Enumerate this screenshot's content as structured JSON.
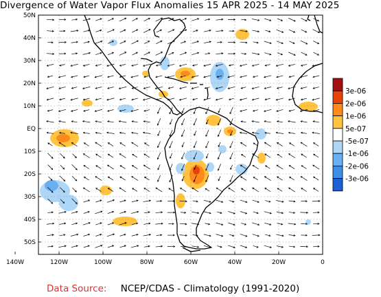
{
  "title": "Divergence of Water Vapor Flux Anomalies 15 APR 2025 - 14 MAY 2025",
  "footer": {
    "source_label": "Data Source:",
    "source_value": "NCEP/CDAS - Climatology (1991-2020)"
  },
  "map": {
    "lat_labels": [
      "50N",
      "40N",
      "30N",
      "20N",
      "10N",
      "EQ",
      "10S",
      "20S",
      "30S",
      "40S",
      "50S"
    ],
    "lon_labels": [
      "140W",
      "120W",
      "100W",
      "80W",
      "60W",
      "40W",
      "20W",
      "0"
    ],
    "coastline_color": "#000000",
    "vector_color": "#000000"
  },
  "legend": {
    "labels": [
      "3e-06",
      "2e-06",
      "1e-06",
      "5e-07",
      "-5e-07",
      "-1e-06",
      "-2e-06",
      "-3e-06"
    ],
    "colors": [
      "#a50f0f",
      "#e8420a",
      "#ff8a1a",
      "#ffc340",
      "#ffffff",
      "#aed6f7",
      "#6aaff0",
      "#3d8ee6",
      "#1f5fd6"
    ]
  }
}
